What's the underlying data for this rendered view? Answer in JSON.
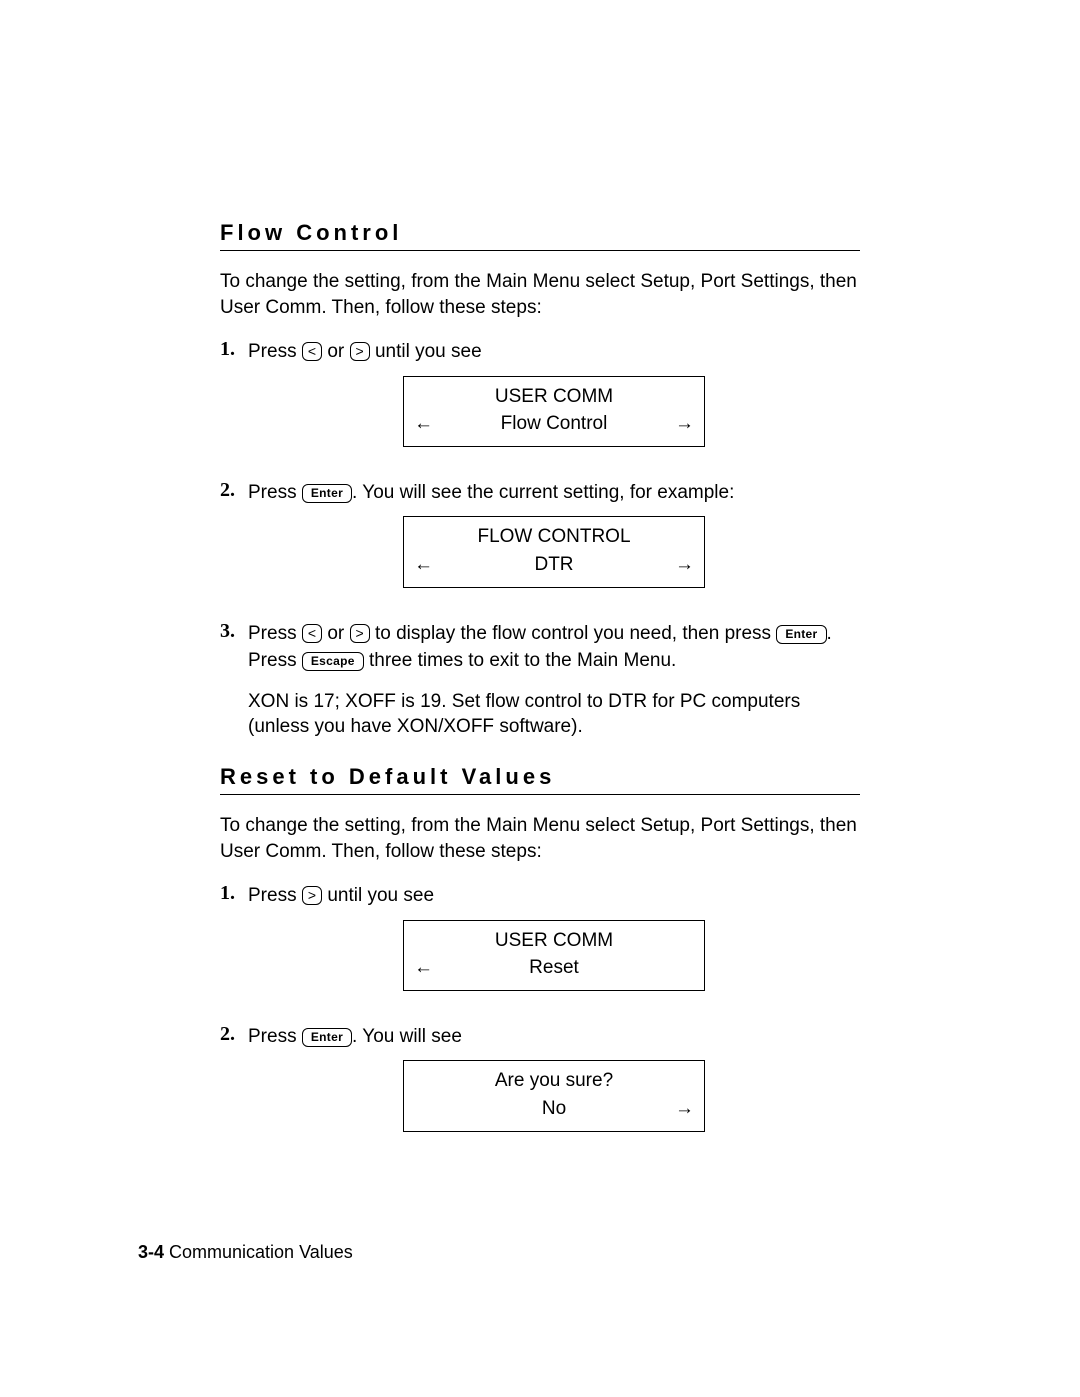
{
  "section1": {
    "heading": "Flow Control",
    "intro": "To change the setting, from the Main Menu select Setup, Port Settings, then User Comm.  Then, follow these steps:",
    "step1_pre": "Press ",
    "step1_post": " until you see",
    "key_lt": "<",
    "key_gt": ">",
    "or_text": " or ",
    "lcd1_line1": "USER COMM",
    "lcd1_line2": "Flow Control",
    "arrow_left": "←",
    "arrow_right": "→",
    "step2_pre": "Press ",
    "key_enter": "Enter",
    "step2_post": ".  You will see the current setting, for example:",
    "lcd2_line1": "FLOW CONTROL",
    "lcd2_line2": "DTR",
    "step3_pre": "Press ",
    "step3_mid1": " to display the flow control you need, then press ",
    "step3_mid2": ".  Press ",
    "key_escape": "Escape",
    "step3_post": " three times to exit to the Main Menu.",
    "note": "XON is 17; XOFF is 19.  Set flow control to DTR for PC computers (unless you have XON/XOFF software)."
  },
  "section2": {
    "heading": "Reset to Default Values",
    "intro": "To change the setting, from the Main Menu select Setup, Port Settings, then User Comm.  Then, follow these steps:",
    "step1_pre": "Press ",
    "step1_post": " until you see",
    "lcd1_line1": "USER COMM",
    "lcd1_line2": "Reset",
    "step2_pre": "Press ",
    "step2_post": ".  You will see",
    "lcd2_line1": "Are you sure?",
    "lcd2_line2": "No"
  },
  "footer": {
    "page": "3-4",
    "chapter": " Communication Values"
  },
  "labels": {
    "num1": "1.",
    "num2": "2.",
    "num3": "3."
  }
}
